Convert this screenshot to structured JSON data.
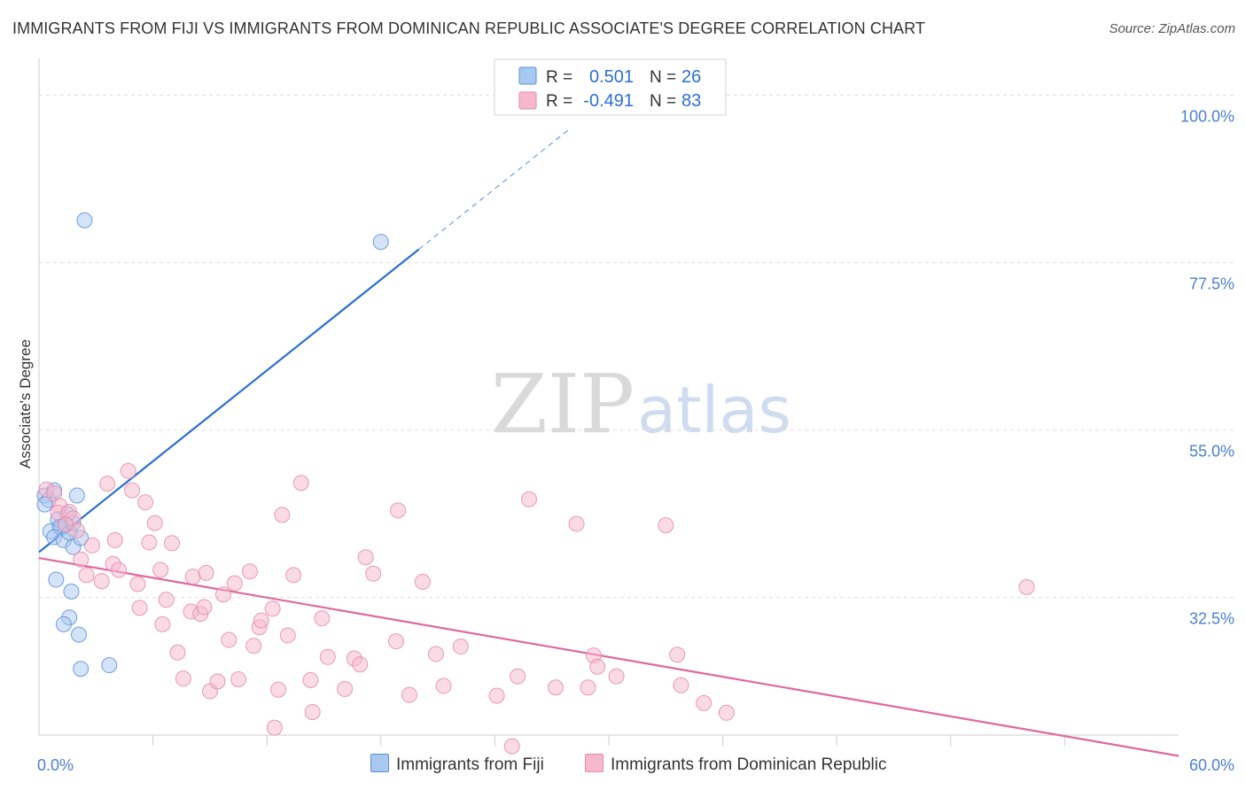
{
  "title": "IMMIGRANTS FROM FIJI VS IMMIGRANTS FROM DOMINICAN REPUBLIC ASSOCIATE'S DEGREE CORRELATION CHART",
  "source": "Source: ZipAtlas.com",
  "watermark": {
    "zip": "ZIP",
    "atlas": "atlas"
  },
  "legend_top": {
    "rows": [
      {
        "r_label": "R =",
        "r_value": "0.501",
        "n_label": "N =",
        "n_value": "26"
      },
      {
        "r_label": "R =",
        "r_value": "-0.491",
        "n_label": "N =",
        "n_value": "83"
      }
    ]
  },
  "legend_bottom": {
    "fiji": "Immigrants from Fiji",
    "dominican": "Immigrants from Dominican Republic"
  },
  "colors": {
    "fiji_fill": "#a9c8f0",
    "fiji_stroke": "#5a8fd8",
    "fiji_line": "#2b6fd0",
    "dom_fill": "#f6b8cc",
    "dom_stroke": "#e58aaa",
    "dom_line": "#e0689a",
    "tick_label": "#4a7fd0",
    "grid": "#dddddd"
  },
  "chart_data": {
    "type": "scatter",
    "ylabel": "Associate's Degree",
    "xlim": [
      0,
      60
    ],
    "ylim": [
      14,
      104
    ],
    "x_tick_labels": [
      {
        "value": 0,
        "label": "0.0%"
      },
      {
        "value": 60,
        "label": "60.0%"
      }
    ],
    "y_ticks": [
      {
        "value": 32.5,
        "label": "32.5%"
      },
      {
        "value": 55.0,
        "label": "55.0%"
      },
      {
        "value": 77.5,
        "label": "77.5%"
      },
      {
        "value": 100.0,
        "label": "100.0%"
      }
    ],
    "series": [
      {
        "name": "Immigrants from Fiji",
        "key": "fiji",
        "R": 0.501,
        "N": 26,
        "points": [
          [
            0.3,
            46.2
          ],
          [
            0.5,
            45.6
          ],
          [
            0.3,
            45.0
          ],
          [
            0.8,
            46.9
          ],
          [
            0.6,
            41.4
          ],
          [
            1.0,
            43.0
          ],
          [
            1.2,
            41.9
          ],
          [
            1.5,
            43.7
          ],
          [
            1.1,
            42.0
          ],
          [
            1.4,
            42.3
          ],
          [
            0.8,
            40.6
          ],
          [
            1.3,
            40.2
          ],
          [
            1.6,
            41.2
          ],
          [
            1.8,
            42.5
          ],
          [
            2.0,
            46.2
          ],
          [
            1.8,
            39.3
          ],
          [
            2.2,
            40.5
          ],
          [
            0.9,
            34.9
          ],
          [
            1.7,
            33.3
          ],
          [
            1.6,
            29.8
          ],
          [
            1.3,
            28.9
          ],
          [
            2.1,
            27.5
          ],
          [
            2.2,
            22.9
          ],
          [
            3.7,
            23.4
          ],
          [
            2.4,
            83.2
          ],
          [
            18.0,
            80.3
          ]
        ],
        "trendline": {
          "x": [
            0.0,
            20.0
          ],
          "y": [
            38.6,
            79.3
          ]
        },
        "trendline_extension": {
          "x": [
            20.0,
            28.0
          ],
          "y": [
            79.3,
            95.6
          ]
        }
      },
      {
        "name": "Immigrants from Dominican Republic",
        "key": "dominican",
        "R": -0.491,
        "N": 83,
        "points": [
          [
            0.4,
            47.0
          ],
          [
            0.8,
            46.5
          ],
          [
            1.1,
            44.8
          ],
          [
            1.0,
            43.9
          ],
          [
            1.6,
            44.0
          ],
          [
            1.8,
            43.1
          ],
          [
            2.0,
            41.5
          ],
          [
            1.4,
            42.3
          ],
          [
            2.2,
            37.6
          ],
          [
            2.5,
            35.5
          ],
          [
            2.8,
            39.5
          ],
          [
            3.3,
            34.7
          ],
          [
            3.6,
            47.8
          ],
          [
            4.0,
            40.2
          ],
          [
            3.9,
            37.0
          ],
          [
            4.2,
            36.2
          ],
          [
            4.7,
            49.5
          ],
          [
            4.9,
            46.9
          ],
          [
            5.2,
            34.3
          ],
          [
            5.3,
            31.1
          ],
          [
            5.6,
            45.3
          ],
          [
            5.8,
            39.9
          ],
          [
            6.1,
            42.5
          ],
          [
            6.4,
            36.2
          ],
          [
            6.5,
            28.9
          ],
          [
            6.7,
            32.2
          ],
          [
            7.0,
            39.8
          ],
          [
            7.3,
            25.1
          ],
          [
            7.6,
            21.6
          ],
          [
            8.0,
            30.6
          ],
          [
            8.1,
            35.3
          ],
          [
            8.5,
            30.3
          ],
          [
            8.7,
            31.2
          ],
          [
            8.8,
            35.8
          ],
          [
            9.0,
            19.9
          ],
          [
            9.4,
            21.2
          ],
          [
            9.7,
            32.9
          ],
          [
            10.0,
            26.8
          ],
          [
            10.3,
            34.4
          ],
          [
            10.5,
            21.5
          ],
          [
            11.1,
            36.0
          ],
          [
            11.3,
            26.0
          ],
          [
            11.6,
            28.5
          ],
          [
            11.7,
            29.4
          ],
          [
            12.3,
            31.0
          ],
          [
            12.4,
            15.0
          ],
          [
            12.6,
            20.1
          ],
          [
            12.8,
            43.6
          ],
          [
            13.1,
            27.4
          ],
          [
            13.4,
            35.5
          ],
          [
            13.8,
            47.9
          ],
          [
            14.3,
            21.4
          ],
          [
            14.4,
            17.1
          ],
          [
            14.9,
            29.7
          ],
          [
            15.2,
            24.5
          ],
          [
            16.1,
            20.2
          ],
          [
            16.6,
            24.3
          ],
          [
            16.9,
            23.5
          ],
          [
            17.2,
            37.9
          ],
          [
            17.6,
            35.7
          ],
          [
            18.8,
            26.6
          ],
          [
            18.9,
            44.2
          ],
          [
            19.5,
            19.4
          ],
          [
            20.2,
            34.6
          ],
          [
            20.9,
            24.9
          ],
          [
            21.3,
            20.6
          ],
          [
            22.2,
            25.9
          ],
          [
            24.1,
            19.3
          ],
          [
            24.9,
            12.5
          ],
          [
            25.2,
            21.9
          ],
          [
            25.8,
            45.7
          ],
          [
            27.2,
            20.4
          ],
          [
            28.3,
            42.4
          ],
          [
            28.9,
            20.4
          ],
          [
            29.2,
            24.7
          ],
          [
            29.4,
            23.2
          ],
          [
            30.4,
            21.9
          ],
          [
            33.0,
            42.2
          ],
          [
            33.6,
            24.8
          ],
          [
            33.8,
            20.7
          ],
          [
            35.0,
            18.3
          ],
          [
            36.2,
            17.0
          ],
          [
            52.0,
            33.9
          ]
        ],
        "trendline": {
          "x": [
            0.0,
            60.0
          ],
          "y": [
            37.8,
            11.2
          ]
        }
      }
    ]
  }
}
